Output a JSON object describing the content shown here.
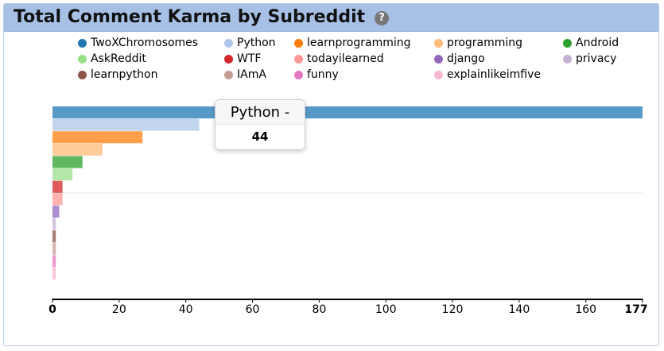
{
  "header": {
    "title": "Total Comment Karma by Subreddit",
    "help_icon": "?"
  },
  "colors": {
    "header_bg": "#a7c1e6",
    "border": "#b7c9e6"
  },
  "tooltip": {
    "label": "Python -",
    "value": "44"
  },
  "chart_data": {
    "type": "bar",
    "orientation": "horizontal",
    "title": "Total Comment Karma by Subreddit",
    "xlim": [
      0,
      177
    ],
    "xticks": [
      "0",
      "20",
      "40",
      "60",
      "80",
      "100",
      "120",
      "140",
      "160",
      "177"
    ],
    "legend_position": "top",
    "series": [
      {
        "name": "TwoXChromosomes",
        "value": 177,
        "color": "#1f77b4"
      },
      {
        "name": "Python",
        "value": 44,
        "color": "#aec7e8"
      },
      {
        "name": "learnprogramming",
        "value": 27,
        "color": "#ff7f0e"
      },
      {
        "name": "programming",
        "value": 15,
        "color": "#ffbb78"
      },
      {
        "name": "Android",
        "value": 9,
        "color": "#2ca02c"
      },
      {
        "name": "AskReddit",
        "value": 6,
        "color": "#98df8a"
      },
      {
        "name": "WTF",
        "value": 3,
        "color": "#d62728"
      },
      {
        "name": "todayilearned",
        "value": 3,
        "color": "#ff9896"
      },
      {
        "name": "django",
        "value": 2,
        "color": "#9467bd"
      },
      {
        "name": "privacy",
        "value": 1,
        "color": "#c5b0d5"
      },
      {
        "name": "learnpython",
        "value": 1,
        "color": "#8c564b"
      },
      {
        "name": "IAmA",
        "value": 1,
        "color": "#c49c94"
      },
      {
        "name": "funny",
        "value": 1,
        "color": "#e377c2"
      },
      {
        "name": "explainlikeimfive",
        "value": 1,
        "color": "#f7b6d2"
      }
    ]
  }
}
